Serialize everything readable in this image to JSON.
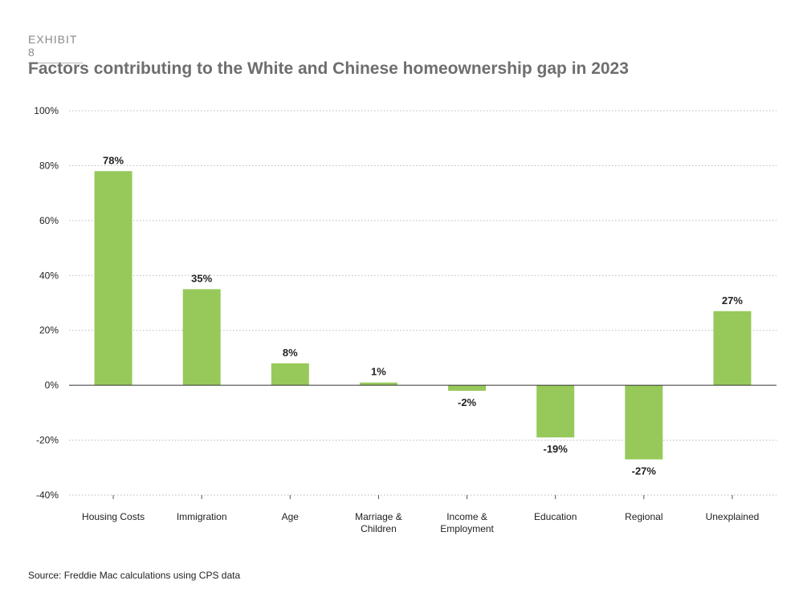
{
  "header": {
    "exhibit": "EXHIBIT 8",
    "title": "Factors contributing to the White and Chinese homeownership gap in 2023"
  },
  "footer": {
    "source": "Source: Freddie Mac calculations using CPS data"
  },
  "colors": {
    "bar": "#96c95a",
    "grid": "#b8b8b8",
    "zero_line": "#333333",
    "title": "#6e6e6e"
  },
  "chart_data": {
    "type": "bar",
    "title": "Factors contributing to the White and Chinese homeownership gap in 2023",
    "xlabel": "",
    "ylabel": "",
    "ylim": [
      -40,
      100
    ],
    "yticks": [
      -40,
      -20,
      0,
      20,
      40,
      60,
      80,
      100
    ],
    "ytick_labels": [
      "-40%",
      "-20%",
      "0%",
      "20%",
      "40%",
      "60%",
      "80%",
      "100%"
    ],
    "grid": true,
    "categories": [
      [
        "Housing Costs"
      ],
      [
        "Immigration"
      ],
      [
        "Age"
      ],
      [
        "Marriage &",
        "Children"
      ],
      [
        "Income &",
        "Employment"
      ],
      [
        "Education"
      ],
      [
        "Regional"
      ],
      [
        "Unexplained"
      ]
    ],
    "values": [
      78,
      35,
      8,
      1,
      -2,
      -19,
      -27,
      27
    ],
    "data_labels": [
      "78%",
      "35%",
      "8%",
      "1%",
      "-2%",
      "-19%",
      "-27%",
      "27%"
    ]
  }
}
